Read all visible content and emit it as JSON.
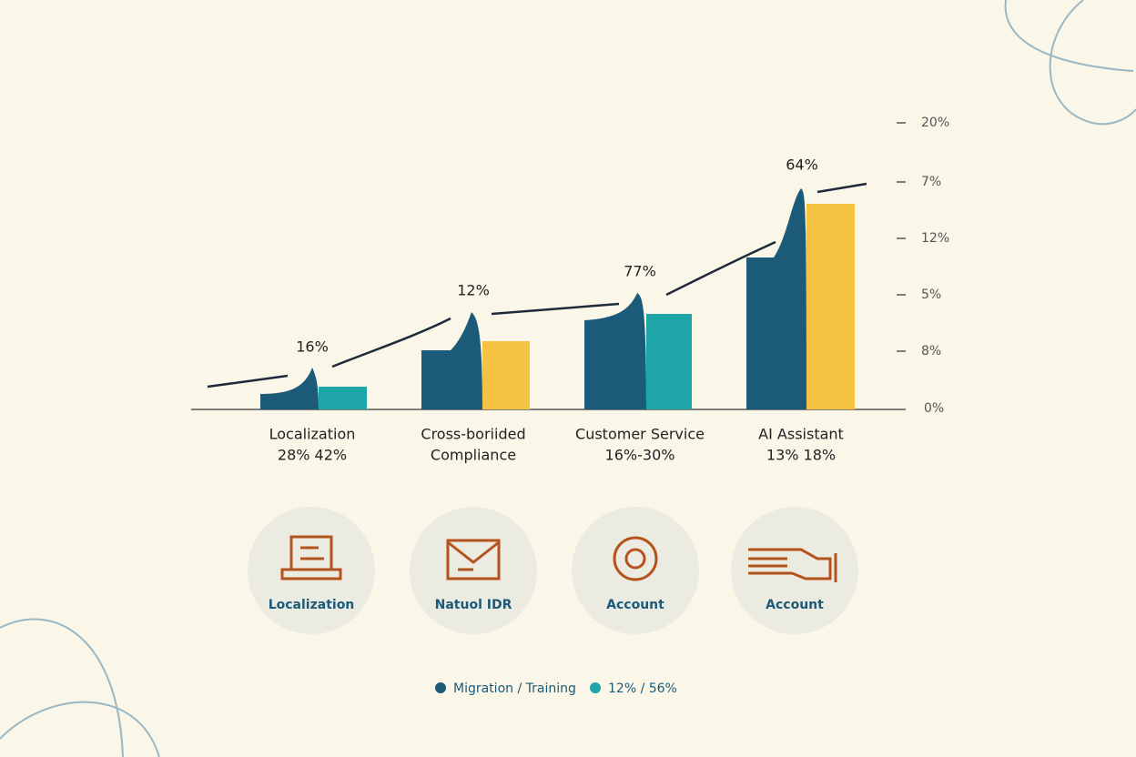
{
  "axis_labels": [
    "20%",
    "7%",
    "12%",
    "5%",
    "8%",
    "0%"
  ],
  "groups": [
    {
      "label_lines": [
        "Localization",
        "28% 42%"
      ],
      "top_label": "16%"
    },
    {
      "label_lines": [
        "Cross-boriided",
        "Compliance"
      ],
      "top_label": "12%"
    },
    {
      "label_lines": [
        "Customer Service",
        "16%-30%"
      ],
      "top_label": "77%"
    },
    {
      "label_lines": [
        "AI Assistant",
        "13% 18%"
      ],
      "top_label": "64%"
    }
  ],
  "badges": [
    "Localization",
    "Natuol IDR",
    "Account",
    "Account"
  ],
  "legend": [
    "Migration / Training",
    "12% / 56%"
  ]
}
